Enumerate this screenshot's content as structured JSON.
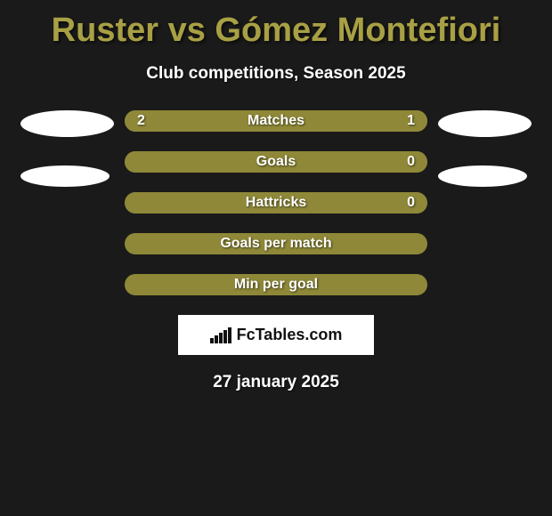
{
  "title": "Ruster vs Gómez Montefiori",
  "subtitle": "Club competitions, Season 2025",
  "colors": {
    "background": "#1a1a1a",
    "accent": "#a8a044",
    "bar_fill": "#8e8838",
    "text": "#ffffff",
    "portrait": "#ffffff"
  },
  "stats": [
    {
      "label": "Matches",
      "left_value": "2",
      "right_value": "1",
      "left_fill_pct": 66,
      "right_fill_pct": 34
    },
    {
      "label": "Goals",
      "left_value": "",
      "right_value": "0",
      "left_fill_pct": 92,
      "right_fill_pct": 8
    },
    {
      "label": "Hattricks",
      "left_value": "",
      "right_value": "0",
      "left_fill_pct": 92,
      "right_fill_pct": 8
    },
    {
      "label": "Goals per match",
      "left_value": "",
      "right_value": "",
      "left_fill_pct": 100,
      "right_fill_pct": 0
    },
    {
      "label": "Min per goal",
      "left_value": "",
      "right_value": "",
      "left_fill_pct": 100,
      "right_fill_pct": 0
    }
  ],
  "brand": {
    "text": "FcTables.com"
  },
  "date": "27 january 2025"
}
